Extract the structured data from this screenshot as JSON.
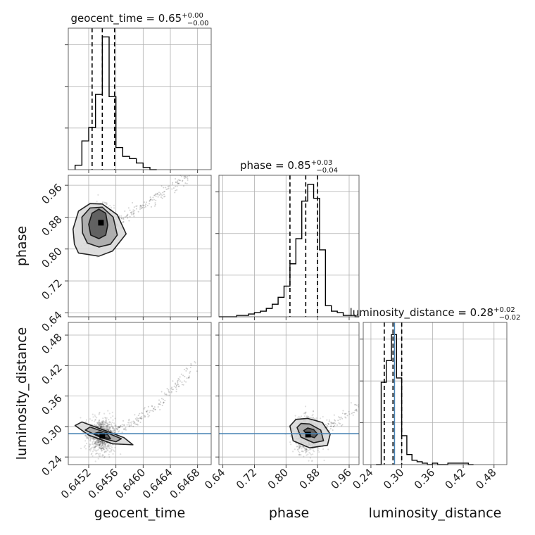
{
  "chart_data": {
    "type": "corner",
    "parameters": [
      "geocent_time",
      "phase",
      "luminosity_distance"
    ],
    "truth": {
      "luminosity_distance": 0.286,
      "truth_color": "#4682b4"
    },
    "diagonal": [
      {
        "parameter": "geocent_time",
        "title_label": "geocent_time = 0.65",
        "title_plus": "+0.00",
        "title_minus": "−0.00",
        "xlim": [
          0.6449,
          0.647
        ],
        "xticks": [
          0.6452,
          0.6456,
          0.646,
          0.6464,
          0.6468
        ],
        "xtick_labels": [
          "0.6452",
          "0.6456",
          "0.6460",
          "0.6464",
          "0.6468"
        ],
        "quantile_lines": [
          0.64525,
          0.6454,
          0.64558
        ],
        "bin_edges": [
          0.645,
          0.6451,
          0.6452,
          0.6453,
          0.6454,
          0.6455,
          0.6456,
          0.6457,
          0.6458,
          0.6459,
          0.646,
          0.6461,
          0.6462
        ],
        "counts": [
          2,
          13,
          19,
          34,
          60,
          33,
          10,
          6,
          5,
          3,
          1,
          0
        ],
        "ymax": 63
      },
      {
        "parameter": "phase",
        "title_label": "phase = 0.85",
        "title_plus": "+0.03",
        "title_minus": "−0.04",
        "xlim": [
          0.63,
          0.985
        ],
        "xticks": [
          0.64,
          0.72,
          0.8,
          0.88,
          0.96
        ],
        "xtick_labels": [
          "0.64",
          "0.72",
          "0.80",
          "0.88",
          "0.96"
        ],
        "quantile_lines": [
          0.81,
          0.85,
          0.88
        ],
        "bin_edges": [
          0.63,
          0.645,
          0.66,
          0.675,
          0.69,
          0.705,
          0.72,
          0.735,
          0.75,
          0.765,
          0.78,
          0.795,
          0.81,
          0.825,
          0.84,
          0.855,
          0.87,
          0.885,
          0.9,
          0.915,
          0.93,
          0.945,
          0.96,
          0.975,
          0.985
        ],
        "counts": [
          0,
          0,
          0,
          1,
          1,
          2,
          3,
          4,
          6,
          9,
          14,
          22,
          38,
          56,
          83,
          95,
          85,
          48,
          8,
          4,
          3,
          1,
          1,
          0
        ],
        "ymax": 100
      },
      {
        "parameter": "luminosity_distance",
        "title_label": "luminosity_distance = 0.28",
        "title_plus": "+0.02",
        "title_minus": "−0.02",
        "xlim": [
          0.225,
          0.505
        ],
        "xticks": [
          0.24,
          0.3,
          0.36,
          0.42,
          0.48
        ],
        "xtick_labels": [
          "0.24",
          "0.30",
          "0.36",
          "0.42",
          "0.48"
        ],
        "quantile_lines": [
          0.266,
          0.283,
          0.3
        ],
        "bin_edges": [
          0.25,
          0.26,
          0.27,
          0.28,
          0.29,
          0.3,
          0.31,
          0.32,
          0.33,
          0.34,
          0.35,
          0.36,
          0.37,
          0.38,
          0.39,
          0.4,
          0.41,
          0.42,
          0.43,
          0.44
        ],
        "counts": [
          0,
          57,
          72,
          90,
          60,
          20,
          7,
          3,
          2,
          1,
          0,
          1,
          0,
          0,
          1,
          1,
          1,
          1,
          0
        ],
        "ymax": 97
      }
    ],
    "pairs": [
      {
        "x": "geocent_time",
        "y": "phase",
        "ylim": [
          0.63,
          0.985
        ],
        "yticks": [
          0.64,
          0.72,
          0.8,
          0.88,
          0.96
        ],
        "ytick_labels": [
          "0.64",
          "0.72",
          "0.80",
          "0.88",
          "0.96"
        ],
        "peak": [
          0.64538,
          0.866
        ],
        "contour_levels": [
          [
            [
              0.64523,
              0.835
            ],
            [
              0.64535,
              0.826
            ],
            [
              0.64545,
              0.835
            ],
            [
              0.64548,
              0.86
            ],
            [
              0.64545,
              0.89
            ],
            [
              0.64535,
              0.9
            ],
            [
              0.64525,
              0.89
            ],
            [
              0.6452,
              0.862
            ]
          ],
          [
            [
              0.64518,
              0.815
            ],
            [
              0.64535,
              0.805
            ],
            [
              0.64552,
              0.812
            ],
            [
              0.64562,
              0.835
            ],
            [
              0.64556,
              0.88
            ],
            [
              0.6454,
              0.905
            ],
            [
              0.64522,
              0.903
            ],
            [
              0.6451,
              0.88
            ],
            [
              0.64511,
              0.84
            ]
          ],
          [
            [
              0.64505,
              0.79
            ],
            [
              0.64535,
              0.782
            ],
            [
              0.64555,
              0.795
            ],
            [
              0.64575,
              0.838
            ],
            [
              0.64562,
              0.886
            ],
            [
              0.6454,
              0.913
            ],
            [
              0.64522,
              0.914
            ],
            [
              0.64505,
              0.895
            ],
            [
              0.64497,
              0.85
            ],
            [
              0.64499,
              0.812
            ]
          ]
        ]
      },
      {
        "x": "geocent_time",
        "y": "luminosity_distance",
        "ylim": [
          0.225,
          0.505
        ],
        "yticks": [
          0.24,
          0.3,
          0.36,
          0.42,
          0.48
        ],
        "ytick_labels": [
          "0.24",
          "0.30",
          "0.36",
          "0.42",
          "0.48"
        ],
        "peak": [
          0.6454,
          0.282
        ],
        "contour_levels": [
          [
            [
              0.64528,
              0.286
            ],
            [
              0.6454,
              0.279
            ],
            [
              0.64552,
              0.276
            ],
            [
              0.64548,
              0.284
            ],
            [
              0.64535,
              0.289
            ]
          ],
          [
            [
              0.64515,
              0.293
            ],
            [
              0.6454,
              0.277
            ],
            [
              0.6456,
              0.27
            ],
            [
              0.64568,
              0.276
            ],
            [
              0.64548,
              0.287
            ],
            [
              0.64522,
              0.299
            ]
          ],
          [
            [
              0.645,
              0.302
            ],
            [
              0.6452,
              0.283
            ],
            [
              0.64555,
              0.266
            ],
            [
              0.64585,
              0.264
            ],
            [
              0.64572,
              0.278
            ],
            [
              0.6454,
              0.294
            ],
            [
              0.6451,
              0.309
            ]
          ]
        ]
      },
      {
        "x": "phase",
        "y": "luminosity_distance",
        "peak": [
          0.856,
          0.284
        ],
        "contour_levels": [
          [
            [
              0.845,
              0.292
            ],
            [
              0.855,
              0.282
            ],
            [
              0.872,
              0.278
            ],
            [
              0.88,
              0.285
            ],
            [
              0.87,
              0.294
            ],
            [
              0.855,
              0.297
            ]
          ],
          [
            [
              0.828,
              0.298
            ],
            [
              0.838,
              0.279
            ],
            [
              0.87,
              0.268
            ],
            [
              0.895,
              0.272
            ],
            [
              0.888,
              0.293
            ],
            [
              0.86,
              0.305
            ],
            [
              0.838,
              0.306
            ]
          ],
          [
            [
              0.81,
              0.301
            ],
            [
              0.818,
              0.272
            ],
            [
              0.86,
              0.258
            ],
            [
              0.905,
              0.263
            ],
            [
              0.912,
              0.285
            ],
            [
              0.892,
              0.308
            ],
            [
              0.855,
              0.316
            ],
            [
              0.825,
              0.314
            ]
          ]
        ]
      }
    ],
    "grid": true,
    "axis_labels": [
      "geocent_time",
      "phase",
      "luminosity_distance"
    ]
  }
}
